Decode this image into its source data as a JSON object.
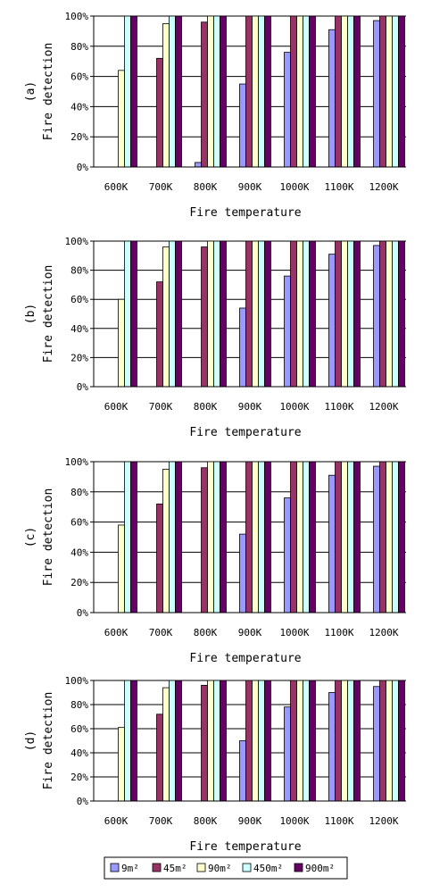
{
  "legend": {
    "entries": [
      "9m²",
      "45m²",
      "90m²",
      "450m²",
      "900m²"
    ]
  },
  "colors": {
    "9m²": "#9999ff",
    "45m²": "#993366",
    "90m²": "#ffffcc",
    "450m²": "#ccffff",
    "900m²": "#660066"
  },
  "chart_data": [
    {
      "type": "bar",
      "panel_label": "(a)",
      "xlabel": "Fire temperature",
      "ylabel": "Fire detection",
      "categories": [
        "600K",
        "700K",
        "800K",
        "900K",
        "1000K",
        "1100K",
        "1200K"
      ],
      "ylim": [
        0,
        100
      ],
      "yticks": [
        "0%",
        "20%",
        "40%",
        "60%",
        "80%",
        "100%"
      ],
      "grid": true,
      "series": [
        {
          "name": "9m²",
          "values": [
            0,
            0,
            3,
            55,
            76,
            91,
            97
          ]
        },
        {
          "name": "45m²",
          "values": [
            0,
            72,
            96,
            100,
            100,
            100,
            100
          ]
        },
        {
          "name": "90m²",
          "values": [
            64,
            95,
            100,
            100,
            100,
            100,
            100
          ]
        },
        {
          "name": "450m²",
          "values": [
            100,
            100,
            100,
            100,
            100,
            100,
            100
          ]
        },
        {
          "name": "900m²",
          "values": [
            100,
            100,
            100,
            100,
            100,
            100,
            100
          ]
        }
      ]
    },
    {
      "type": "bar",
      "panel_label": "(b)",
      "xlabel": "Fire temperature",
      "ylabel": "Fire detection",
      "categories": [
        "600K",
        "700K",
        "800K",
        "900K",
        "1000K",
        "1100K",
        "1200K"
      ],
      "ylim": [
        0,
        100
      ],
      "yticks": [
        "0%",
        "20%",
        "40%",
        "60%",
        "80%",
        "100%"
      ],
      "grid": true,
      "series": [
        {
          "name": "9m²",
          "values": [
            0,
            0,
            0,
            54,
            76,
            91,
            97
          ]
        },
        {
          "name": "45m²",
          "values": [
            0,
            72,
            96,
            100,
            100,
            100,
            100
          ]
        },
        {
          "name": "90m²",
          "values": [
            60,
            96,
            100,
            100,
            100,
            100,
            100
          ]
        },
        {
          "name": "450m²",
          "values": [
            100,
            100,
            100,
            100,
            100,
            100,
            100
          ]
        },
        {
          "name": "900m²",
          "values": [
            100,
            100,
            100,
            100,
            100,
            100,
            100
          ]
        }
      ]
    },
    {
      "type": "bar",
      "panel_label": "(c)",
      "xlabel": "Fire temperature",
      "ylabel": "Fire detection",
      "categories": [
        "600K",
        "700K",
        "800K",
        "900K",
        "1000K",
        "1100K",
        "1200K"
      ],
      "ylim": [
        0,
        100
      ],
      "yticks": [
        "0%",
        "20%",
        "40%",
        "60%",
        "80%",
        "100%"
      ],
      "grid": true,
      "series": [
        {
          "name": "9m²",
          "values": [
            0,
            0,
            0,
            52,
            76,
            91,
            97
          ]
        },
        {
          "name": "45m²",
          "values": [
            0,
            72,
            96,
            100,
            100,
            100,
            100
          ]
        },
        {
          "name": "90m²",
          "values": [
            58,
            95,
            100,
            100,
            100,
            100,
            100
          ]
        },
        {
          "name": "450m²",
          "values": [
            100,
            100,
            100,
            100,
            100,
            100,
            100
          ]
        },
        {
          "name": "900m²",
          "values": [
            100,
            100,
            100,
            100,
            100,
            100,
            100
          ]
        }
      ]
    },
    {
      "type": "bar",
      "panel_label": "(d)",
      "xlabel": "Fire temperature",
      "ylabel": "Fire detection",
      "categories": [
        "600K",
        "700K",
        "800K",
        "900K",
        "1000K",
        "1100K",
        "1200K"
      ],
      "ylim": [
        0,
        100
      ],
      "yticks": [
        "0%",
        "20%",
        "40%",
        "60%",
        "80%",
        "100%"
      ],
      "grid": true,
      "series": [
        {
          "name": "9m²",
          "values": [
            0,
            0,
            0,
            50,
            78,
            90,
            95
          ]
        },
        {
          "name": "45m²",
          "values": [
            0,
            72,
            96,
            100,
            100,
            100,
            100
          ]
        },
        {
          "name": "90m²",
          "values": [
            61,
            94,
            100,
            100,
            100,
            100,
            100
          ]
        },
        {
          "name": "450m²",
          "values": [
            100,
            100,
            100,
            100,
            100,
            100,
            100
          ]
        },
        {
          "name": "900m²",
          "values": [
            100,
            100,
            100,
            100,
            100,
            100,
            100
          ]
        }
      ]
    }
  ]
}
